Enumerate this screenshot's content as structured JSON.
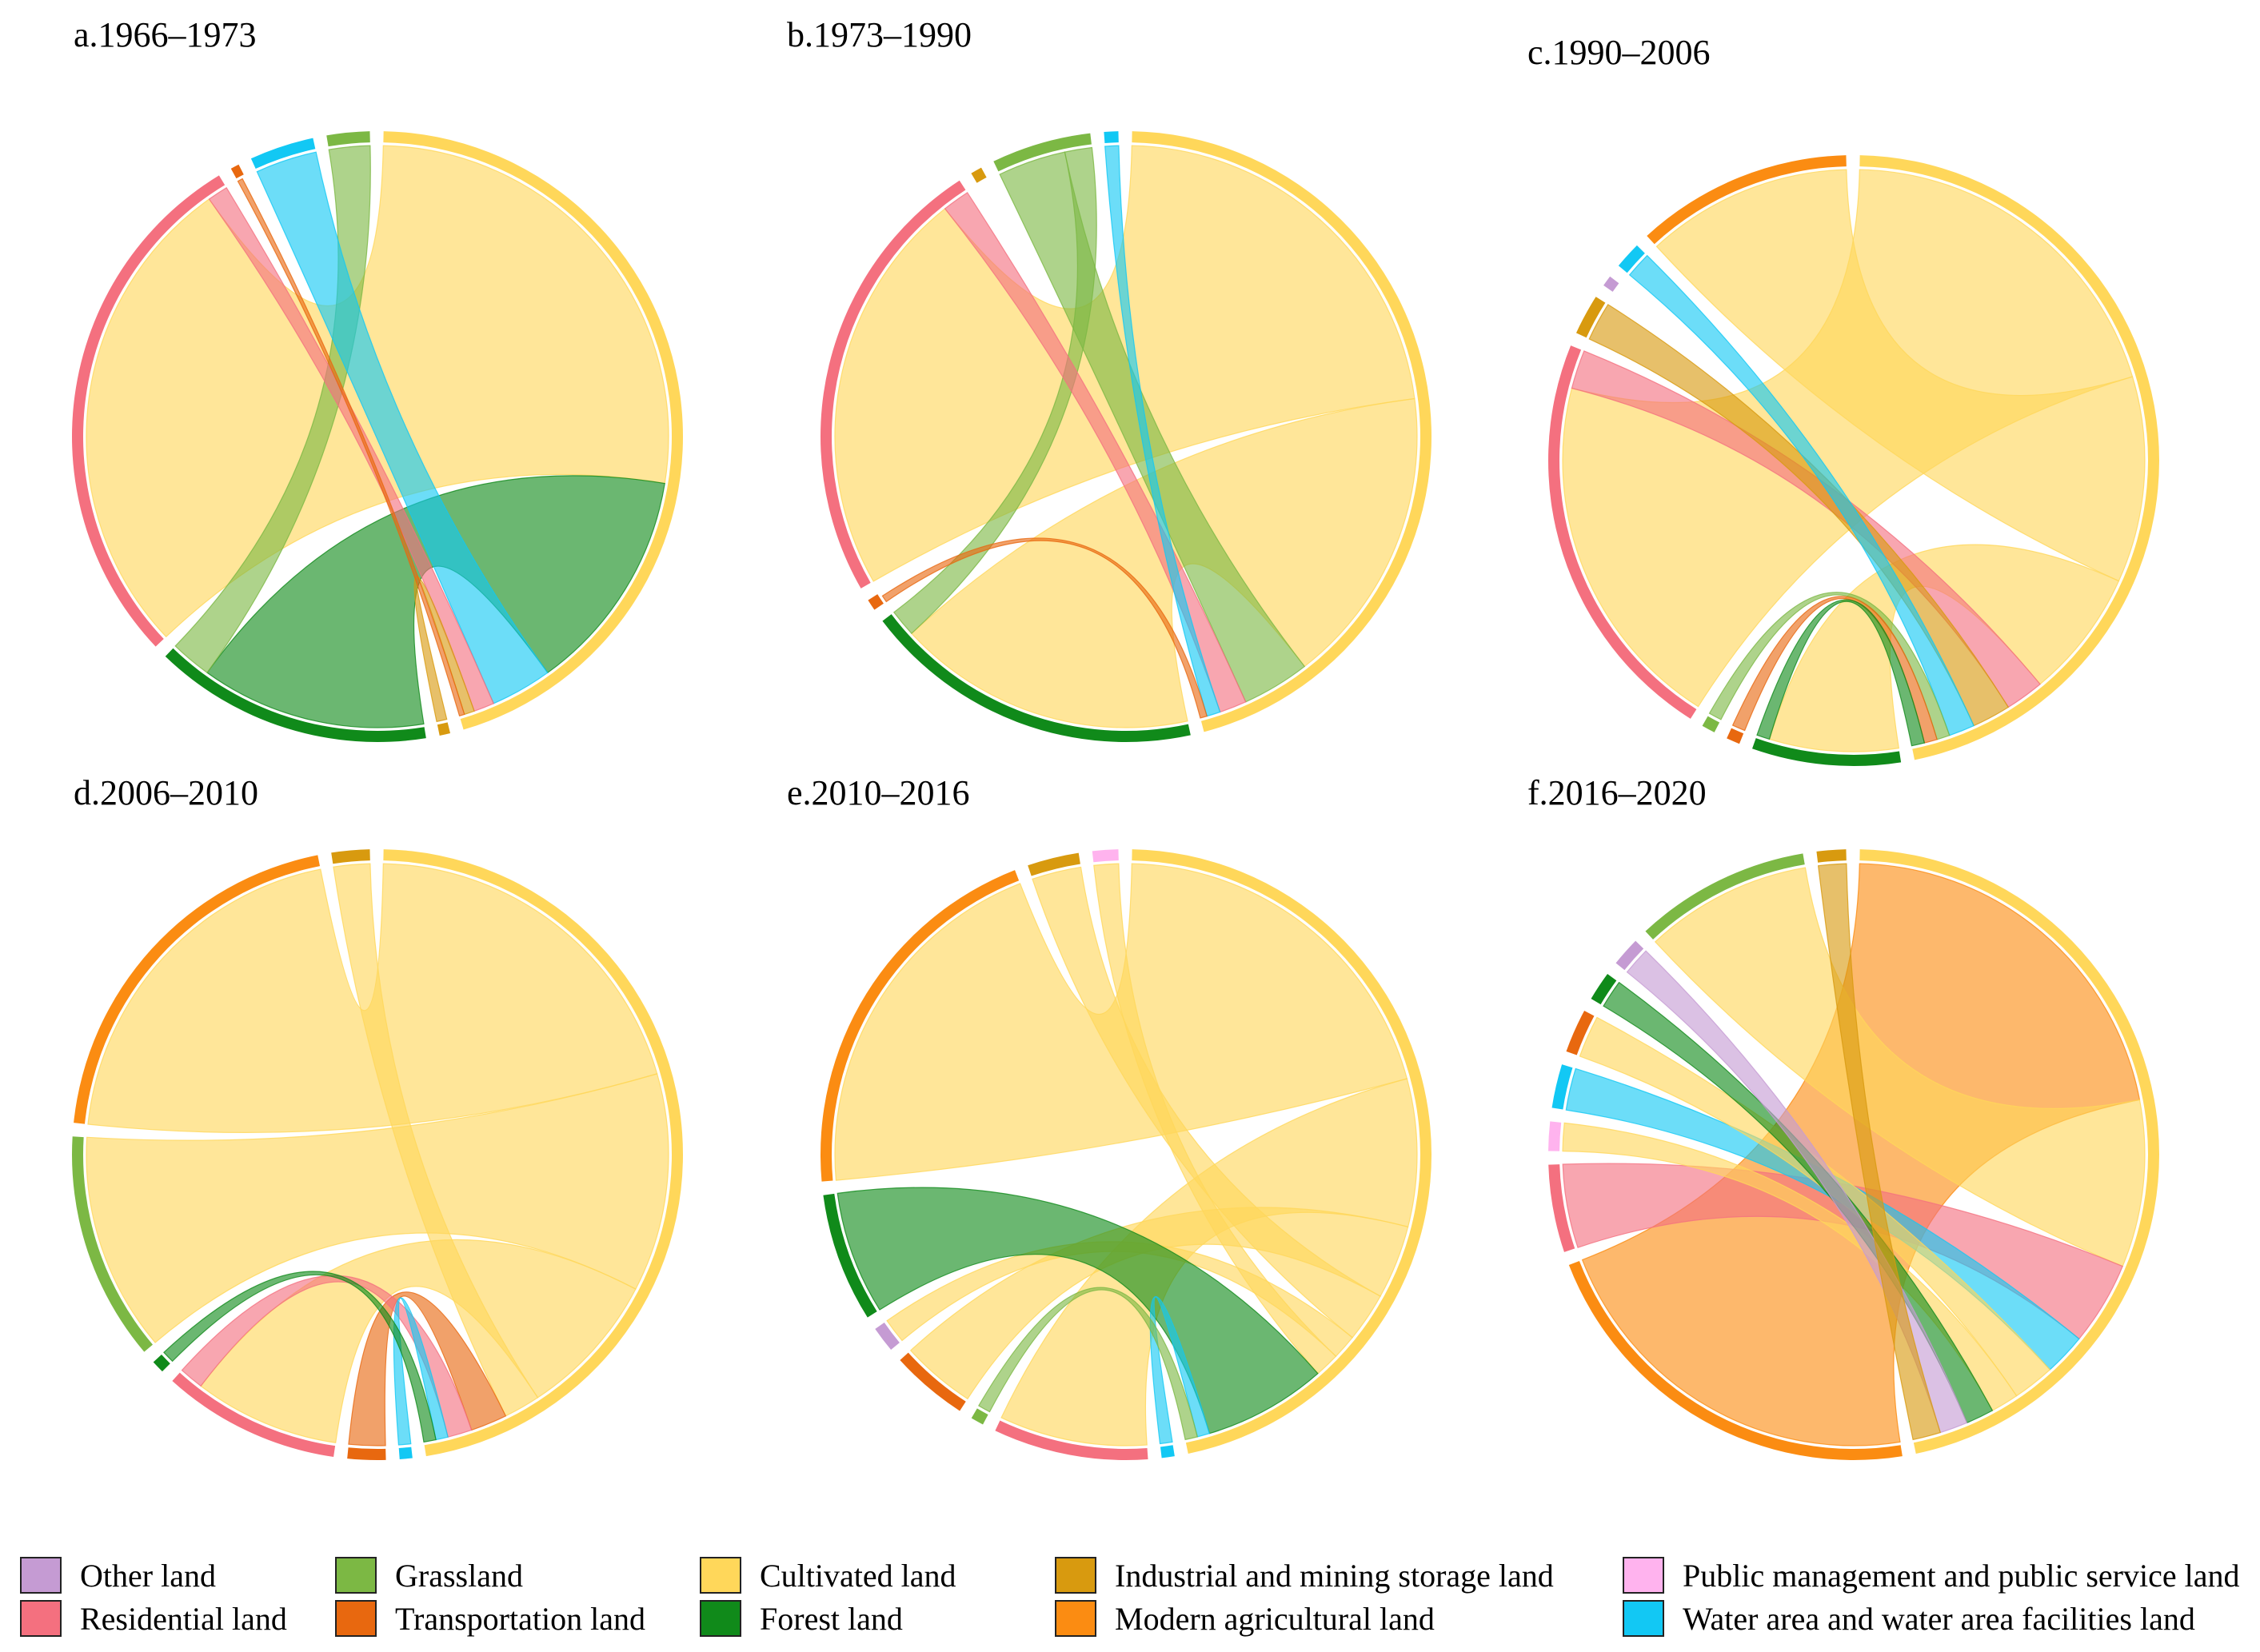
{
  "legend": [
    {
      "key": "other",
      "label": "Other land",
      "color": "#C59BD3"
    },
    {
      "key": "residential",
      "label": "Residential land",
      "color": "#F4707F"
    },
    {
      "key": "grassland",
      "label": "Grassland",
      "color": "#7CB844"
    },
    {
      "key": "transportation",
      "label": "Transportation land",
      "color": "#E8680F"
    },
    {
      "key": "cultivated",
      "label": "Cultivated land",
      "color": "#FFD75A"
    },
    {
      "key": "forest",
      "label": "Forest land",
      "color": "#108A1A"
    },
    {
      "key": "industrial",
      "label": "Industrial and mining storage land",
      "color": "#D89A0F"
    },
    {
      "key": "modern",
      "label": "Modern agricultural land",
      "color": "#FB8C12"
    },
    {
      "key": "public",
      "label": "Public management and public service land",
      "color": "#FFB3EE"
    },
    {
      "key": "water",
      "label": "Water area and water area facilities land",
      "color": "#12C8F4"
    }
  ],
  "chart_data": [
    {
      "type": "chord",
      "title": "a.1966–1973",
      "sectors": [
        "cultivated",
        "industrial",
        "forest",
        "residential",
        "transportation",
        "water",
        "grassland"
      ],
      "flows": [
        {
          "from": "cultivated",
          "to": "residential",
          "value": 48
        },
        {
          "from": "forest",
          "to": "cultivated",
          "value": 22
        },
        {
          "from": "grassland",
          "to": "forest",
          "value": 4
        },
        {
          "from": "water",
          "to": "cultivated",
          "value": 6
        },
        {
          "from": "residential",
          "to": "cultivated",
          "value": 2
        },
        {
          "from": "industrial",
          "to": "cultivated",
          "value": 1
        },
        {
          "from": "transportation",
          "to": "cultivated",
          "value": 0.5
        }
      ]
    },
    {
      "type": "chord",
      "title": "b.1973–1990",
      "sectors": [
        "cultivated",
        "forest",
        "transportation",
        "residential",
        "industrial",
        "grassland",
        "water"
      ],
      "flows": [
        {
          "from": "cultivated",
          "to": "residential",
          "value": 30
        },
        {
          "from": "cultivated",
          "to": "forest",
          "value": 22
        },
        {
          "from": "grassland",
          "to": "cultivated",
          "value": 5
        },
        {
          "from": "grassland",
          "to": "forest",
          "value": 2
        },
        {
          "from": "residential",
          "to": "cultivated",
          "value": 2
        },
        {
          "from": "water",
          "to": "cultivated",
          "value": 1
        },
        {
          "from": "transportation",
          "to": "cultivated",
          "value": 0.5
        }
      ]
    },
    {
      "type": "chord",
      "title": "c.1990–2006",
      "sectors": [
        "cultivated",
        "forest",
        "transportation",
        "grassland",
        "residential",
        "industrial",
        "other",
        "water"
      ],
      "flows": [
        {
          "from": "cultivated",
          "to": "residential",
          "value": 28
        },
        {
          "from": "cultivated",
          "to": "modern",
          "value": 16
        },
        {
          "from": "cultivated",
          "to": "forest",
          "value": 10
        },
        {
          "from": "residential",
          "to": "cultivated",
          "value": 3
        },
        {
          "from": "industrial",
          "to": "cultivated",
          "value": 3
        },
        {
          "from": "water",
          "to": "cultivated",
          "value": 2
        },
        {
          "from": "grassland",
          "to": "cultivated",
          "value": 1
        },
        {
          "from": "transportation",
          "to": "cultivated",
          "value": 1
        },
        {
          "from": "forest",
          "to": "cultivated",
          "value": 1
        }
      ]
    },
    {
      "type": "chord",
      "title": "d.2006–2010",
      "sectors": [
        "cultivated",
        "water",
        "transportation",
        "residential",
        "forest",
        "grassland"
      ],
      "flows": [
        {
          "from": "cultivated",
          "to": "modern",
          "value": 30
        },
        {
          "from": "cultivated",
          "to": "grassland",
          "value": 18
        },
        {
          "from": "cultivated",
          "to": "residential",
          "value": 12
        },
        {
          "from": "cultivated",
          "to": "industrial",
          "value": 3
        },
        {
          "from": "transportation",
          "to": "cultivated",
          "value": 3
        },
        {
          "from": "residential",
          "to": "cultivated",
          "value": 2
        },
        {
          "from": "water",
          "to": "cultivated",
          "value": 1
        },
        {
          "from": "forest",
          "to": "cultivated",
          "value": 1
        }
      ]
    },
    {
      "type": "chord",
      "title": "e.2010–2016",
      "sectors": [
        "cultivated",
        "water",
        "residential",
        "grassland",
        "transportation",
        "other",
        "forest"
      ],
      "flows": [
        {
          "from": "cultivated",
          "to": "modern",
          "value": 30
        },
        {
          "from": "cultivated",
          "to": "residential",
          "value": 12
        },
        {
          "from": "cultivated",
          "to": "transportation",
          "value": 6
        },
        {
          "from": "cultivated",
          "to": "industrial",
          "value": 4
        },
        {
          "from": "cultivated",
          "to": "other",
          "value": 2
        },
        {
          "from": "cultivated",
          "to": "public",
          "value": 2
        },
        {
          "from": "forest",
          "to": "cultivated",
          "value": 10
        },
        {
          "from": "water",
          "to": "cultivated",
          "value": 1
        },
        {
          "from": "grassland",
          "to": "cultivated",
          "value": 1
        }
      ]
    },
    {
      "type": "chord",
      "title": "f.2016–2020",
      "sectors": [
        "cultivated",
        "modern",
        "residential",
        "public",
        "water",
        "transportation",
        "forest",
        "other",
        "grassland",
        "industrial"
      ],
      "flows": [
        {
          "from": "modern",
          "to": "cultivated",
          "value": 28
        },
        {
          "from": "cultivated",
          "to": "grassland",
          "value": 12
        },
        {
          "from": "residential",
          "to": "cultivated",
          "value": 6
        },
        {
          "from": "water",
          "to": "cultivated",
          "value": 3
        },
        {
          "from": "cultivated",
          "to": "transportation",
          "value": 3
        },
        {
          "from": "cultivated",
          "to": "public",
          "value": 2
        },
        {
          "from": "forest",
          "to": "cultivated",
          "value": 2
        },
        {
          "from": "other",
          "to": "cultivated",
          "value": 2
        },
        {
          "from": "industrial",
          "to": "cultivated",
          "value": 2
        }
      ]
    }
  ]
}
